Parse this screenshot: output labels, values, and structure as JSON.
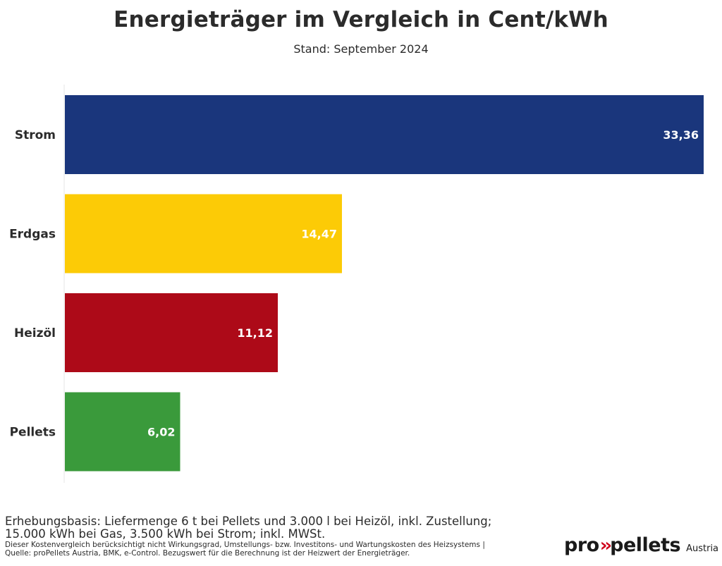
{
  "title": "Energieträger im Vergleich in Cent/kWh",
  "subtitle": "Stand: September 2024",
  "chart_data": {
    "type": "bar",
    "orientation": "horizontal",
    "title": "Energieträger im Vergleich in Cent/kWh",
    "subtitle": "Stand: September 2024",
    "categories": [
      "Strom",
      "Erdgas",
      "Heizöl",
      "Pellets"
    ],
    "values": [
      33.36,
      14.47,
      11.12,
      6.02
    ],
    "value_labels": [
      "33,36",
      "14,47",
      "11,12",
      "6,02"
    ],
    "colors": [
      "#1a367c",
      "#fccb06",
      "#ad0a18",
      "#3a9a3b"
    ],
    "xlim": [
      0,
      33.36
    ],
    "grid": false,
    "legend": "none"
  },
  "notes": {
    "main_line1": "Erhebungsbasis: Liefermenge 6 t bei Pellets und 3.000 l bei Heizöl, inkl. Zustellung;",
    "main_line2": "15.000 kWh bei Gas, 3.500 kWh bei Strom; inkl. MWSt.",
    "small_line1": "Dieser Kostenvergleich berücksichtigt nicht Wirkungsgrad, Umstellungs- bzw. Investitons- und Wartungskosten des Heizsystems |",
    "small_line2": "Quelle: proPellets Austria, BMK, e-Control. Bezugswert für die Berechnung ist der Heizwert der Energieträger."
  },
  "logo": {
    "part1": "pro",
    "part2": "pellets",
    "suffix": "Austria"
  }
}
